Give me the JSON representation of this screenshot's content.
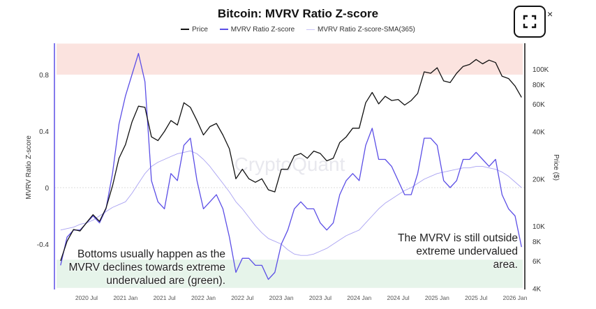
{
  "window": {
    "expand_icon": "expand-icon",
    "close_label": "×"
  },
  "chart_data": {
    "type": "line",
    "title": "Bitcoin: MVRV Ratio Z-score",
    "watermark": "CryptoQuant",
    "legend": [
      "Price",
      "MVRV Ratio Z-score",
      "MVRV Ratio Z-score-SMA(365)"
    ],
    "legend_placement": "top",
    "ylabel_left": "MVRV Ratio Z-score",
    "ylabel_right": "Price ($)",
    "y_left_ticks": [
      "0.8",
      "0.4",
      "0",
      "-0.4"
    ],
    "y_left_tick_values": [
      0.8,
      0.4,
      0,
      -0.4
    ],
    "y_right_ticks": [
      "100K",
      "80K",
      "60K",
      "40K",
      "20K",
      "10K",
      "8K",
      "6K",
      "4K"
    ],
    "y_right_tick_values": [
      100,
      80,
      60,
      40,
      20,
      10,
      8,
      6,
      4
    ],
    "y_right_scale": "log",
    "x_ticks": [
      "2020 Jul",
      "2021 Jan",
      "2021 Jul",
      "2022 Jan",
      "2022 Jul",
      "2023 Jan",
      "2023 Jul",
      "2024 Jan",
      "2024 Jul",
      "2025 Jan",
      "2025 Jul",
      "2026 Jan"
    ],
    "bands": [
      {
        "name": "overvalued",
        "from": 0.8,
        "to": 1.02,
        "color": "#fbe3df"
      },
      {
        "name": "undervalued",
        "from": -0.71,
        "to": -0.51,
        "color": "#e6f4ea"
      }
    ],
    "colors": {
      "price": "#111111",
      "zscore": "#5b4ee6",
      "sma": "#a9a2f2"
    },
    "x": [
      "2020-03",
      "2020-04",
      "2020-05",
      "2020-06",
      "2020-07",
      "2020-08",
      "2020-09",
      "2020-10",
      "2020-11",
      "2020-12",
      "2021-01",
      "2021-02",
      "2021-03",
      "2021-04",
      "2021-05",
      "2021-06",
      "2021-07",
      "2021-08",
      "2021-09",
      "2021-10",
      "2021-11",
      "2021-12",
      "2022-01",
      "2022-02",
      "2022-03",
      "2022-04",
      "2022-05",
      "2022-06",
      "2022-07",
      "2022-08",
      "2022-09",
      "2022-10",
      "2022-11",
      "2022-12",
      "2023-01",
      "2023-02",
      "2023-03",
      "2023-04",
      "2023-05",
      "2023-06",
      "2023-07",
      "2023-08",
      "2023-09",
      "2023-10",
      "2023-11",
      "2023-12",
      "2024-01",
      "2024-02",
      "2024-03",
      "2024-04",
      "2024-05",
      "2024-06",
      "2024-07",
      "2024-08",
      "2024-09",
      "2024-10",
      "2024-11",
      "2024-12",
      "2025-01",
      "2025-02",
      "2025-03",
      "2025-04",
      "2025-05",
      "2025-06",
      "2025-07",
      "2025-08",
      "2025-09",
      "2025-10",
      "2025-11",
      "2025-12",
      "2026-01",
      "2026-02"
    ],
    "series": [
      {
        "name": "Price",
        "unit": "K USD",
        "values": [
          6,
          8,
          9.5,
          9.3,
          10.5,
          11.8,
          10.7,
          13,
          18,
          27,
          33,
          46,
          58,
          57,
          37,
          35,
          40,
          47,
          44,
          61,
          57,
          47,
          38,
          43,
          45,
          38,
          31,
          20,
          23,
          20,
          19,
          20,
          17,
          16.5,
          23,
          23,
          28,
          29,
          27,
          30,
          29,
          26,
          27,
          34,
          37,
          42,
          42,
          61,
          71,
          60,
          67,
          63,
          64,
          59,
          63,
          70,
          96,
          94,
          102,
          84,
          82,
          94,
          104,
          107,
          115,
          108,
          114,
          110,
          90,
          87,
          78,
          66
        ]
      },
      {
        "name": "MVRV Ratio Z-score",
        "values": [
          -0.55,
          -0.35,
          -0.3,
          -0.3,
          -0.25,
          -0.2,
          -0.25,
          -0.15,
          0.1,
          0.45,
          0.65,
          0.8,
          0.95,
          0.75,
          0.05,
          -0.1,
          -0.15,
          0.1,
          0.05,
          0.3,
          0.35,
          0.05,
          -0.15,
          -0.1,
          -0.05,
          -0.15,
          -0.35,
          -0.6,
          -0.5,
          -0.5,
          -0.55,
          -0.55,
          -0.65,
          -0.6,
          -0.4,
          -0.3,
          -0.15,
          -0.1,
          -0.15,
          -0.15,
          -0.25,
          -0.3,
          -0.25,
          -0.05,
          0.05,
          0.1,
          0.05,
          0.3,
          0.42,
          0.2,
          0.2,
          0.15,
          0.05,
          -0.05,
          -0.05,
          0.1,
          0.35,
          0.35,
          0.3,
          0.05,
          0.0,
          0.05,
          0.2,
          0.2,
          0.25,
          0.2,
          0.15,
          0.2,
          -0.05,
          -0.15,
          -0.2,
          -0.42
        ]
      },
      {
        "name": "MVRV Ratio Z-score-SMA(365)",
        "values": [
          -0.3,
          -0.29,
          -0.28,
          -0.26,
          -0.25,
          -0.23,
          -0.2,
          -0.17,
          -0.14,
          -0.12,
          -0.1,
          -0.04,
          0.03,
          0.1,
          0.15,
          0.18,
          0.2,
          0.22,
          0.24,
          0.25,
          0.26,
          0.24,
          0.2,
          0.15,
          0.09,
          0.03,
          -0.03,
          -0.1,
          -0.15,
          -0.21,
          -0.27,
          -0.32,
          -0.36,
          -0.38,
          -0.4,
          -0.44,
          -0.47,
          -0.48,
          -0.48,
          -0.47,
          -0.45,
          -0.43,
          -0.4,
          -0.37,
          -0.34,
          -0.32,
          -0.3,
          -0.25,
          -0.2,
          -0.15,
          -0.11,
          -0.08,
          -0.05,
          -0.02,
          0.0,
          0.03,
          0.06,
          0.08,
          0.1,
          0.11,
          0.12,
          0.13,
          0.14,
          0.14,
          0.15,
          0.15,
          0.14,
          0.13,
          0.11,
          0.08,
          0.04,
          0.0
        ]
      }
    ]
  },
  "annotations": {
    "left": [
      "Bottoms usually happen as the",
      "MVRV declines towards extreme",
      "undervalued are (green)."
    ],
    "right": [
      "The MVRV is still outside",
      "extreme undervalued",
      "area."
    ]
  }
}
